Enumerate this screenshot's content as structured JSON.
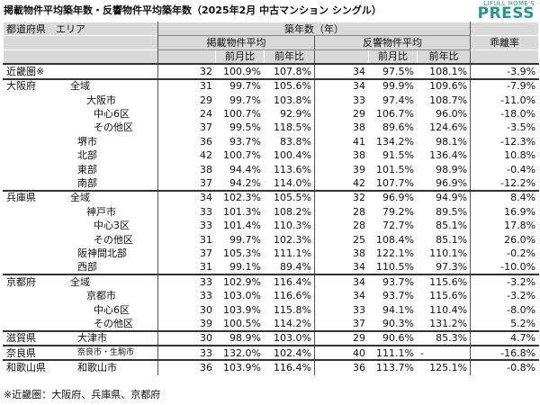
{
  "title": "掲載物件平均築年数・反響物件平均築年数（2025年2月 中古マンション シングル）",
  "logo": {
    "top": "LIFULL HOME'S",
    "main": "PRESS"
  },
  "headers": {
    "region": "都道府県　エリア",
    "age": "築年数（年）",
    "listed": "掲載物件平均",
    "inquiry": "反響物件平均",
    "gap": "乖離率",
    "mom": "前月比",
    "yoy": "前年比"
  },
  "rows": [
    {
      "pref": "近畿圏※",
      "area": "",
      "level": 0,
      "l": "32",
      "lm": "100.9%",
      "ly": "107.8%",
      "i": "34",
      "im": "97.5%",
      "iy": "108.1%",
      "g": "-3.9%"
    },
    {
      "pref": "大阪府",
      "area": "全域",
      "level": 0,
      "l": "31",
      "lm": "99.7%",
      "ly": "105.6%",
      "i": "34",
      "im": "99.9%",
      "iy": "109.6%",
      "g": "-7.9%"
    },
    {
      "pref": "",
      "area": "大阪市",
      "level": 2,
      "l": "29",
      "lm": "99.7%",
      "ly": "103.8%",
      "i": "33",
      "im": "97.4%",
      "iy": "108.7%",
      "g": "-11.0%"
    },
    {
      "pref": "",
      "area": "中心6区",
      "level": 3,
      "l": "24",
      "lm": "100.7%",
      "ly": "92.9%",
      "i": "29",
      "im": "106.7%",
      "iy": "96.0%",
      "g": "-18.0%"
    },
    {
      "pref": "",
      "area": "その他区",
      "level": 3,
      "l": "37",
      "lm": "99.5%",
      "ly": "118.5%",
      "i": "38",
      "im": "89.6%",
      "iy": "124.6%",
      "g": "-3.5%"
    },
    {
      "pref": "",
      "area": "堺市",
      "level": 1,
      "l": "36",
      "lm": "93.7%",
      "ly": "83.8%",
      "i": "41",
      "im": "134.2%",
      "iy": "98.1%",
      "g": "-12.3%"
    },
    {
      "pref": "",
      "area": "北部",
      "level": 1,
      "l": "42",
      "lm": "100.7%",
      "ly": "100.4%",
      "i": "38",
      "im": "91.5%",
      "iy": "136.4%",
      "g": "10.8%"
    },
    {
      "pref": "",
      "area": "東部",
      "level": 1,
      "l": "38",
      "lm": "94.4%",
      "ly": "113.6%",
      "i": "39",
      "im": "101.5%",
      "iy": "98.9%",
      "g": "-0.4%"
    },
    {
      "pref": "",
      "area": "南部",
      "level": 1,
      "l": "37",
      "lm": "94.2%",
      "ly": "114.0%",
      "i": "42",
      "im": "107.7%",
      "iy": "96.9%",
      "g": "-12.2%"
    },
    {
      "pref": "兵庫県",
      "area": "全域",
      "level": 0,
      "l": "34",
      "lm": "102.3%",
      "ly": "105.5%",
      "i": "32",
      "im": "96.9%",
      "iy": "94.9%",
      "g": "8.4%"
    },
    {
      "pref": "",
      "area": "神戸市",
      "level": 2,
      "l": "33",
      "lm": "101.3%",
      "ly": "108.2%",
      "i": "28",
      "im": "79.2%",
      "iy": "89.5%",
      "g": "16.9%"
    },
    {
      "pref": "",
      "area": "中心3区",
      "level": 3,
      "l": "33",
      "lm": "101.4%",
      "ly": "110.3%",
      "i": "28",
      "im": "72.7%",
      "iy": "85.1%",
      "g": "17.8%"
    },
    {
      "pref": "",
      "area": "その他区",
      "level": 3,
      "l": "31",
      "lm": "99.7%",
      "ly": "102.3%",
      "i": "25",
      "im": "108.4%",
      "iy": "85.1%",
      "g": "26.0%"
    },
    {
      "pref": "",
      "area": "阪神間北部",
      "level": 1,
      "l": "37",
      "lm": "105.3%",
      "ly": "111.1%",
      "i": "38",
      "im": "122.1%",
      "iy": "110.1%",
      "g": "-0.2%"
    },
    {
      "pref": "",
      "area": "西部",
      "level": 1,
      "l": "31",
      "lm": "99.1%",
      "ly": "89.4%",
      "i": "34",
      "im": "110.5%",
      "iy": "97.3%",
      "g": "-10.0%"
    },
    {
      "pref": "京都府",
      "area": "全域",
      "level": 0,
      "l": "33",
      "lm": "102.9%",
      "ly": "116.4%",
      "i": "34",
      "im": "93.7%",
      "iy": "115.6%",
      "g": "-3.2%"
    },
    {
      "pref": "",
      "area": "京都市",
      "level": 2,
      "l": "33",
      "lm": "103.0%",
      "ly": "116.6%",
      "i": "34",
      "im": "93.7%",
      "iy": "115.6%",
      "g": "-3.2%"
    },
    {
      "pref": "",
      "area": "中心6区",
      "level": 3,
      "l": "30",
      "lm": "103.9%",
      "ly": "115.8%",
      "i": "33",
      "im": "94.1%",
      "iy": "110.4%",
      "g": "-8.0%"
    },
    {
      "pref": "",
      "area": "その他区",
      "level": 3,
      "l": "39",
      "lm": "100.5%",
      "ly": "114.2%",
      "i": "37",
      "im": "90.3%",
      "iy": "131.2%",
      "g": "5.2%"
    },
    {
      "pref": "滋賀県",
      "area": "大津市",
      "level": 1,
      "l": "30",
      "lm": "98.9%",
      "ly": "103.0%",
      "i": "29",
      "im": "90.6%",
      "iy": "85.3%",
      "g": "4.7%"
    },
    {
      "pref": "奈良県",
      "area": "奈良市・生駒市",
      "level": 1,
      "small": true,
      "l": "33",
      "lm": "132.0%",
      "ly": "102.4%",
      "i": "40",
      "im": "111.1%",
      "iy": "-",
      "g": "-16.8%"
    },
    {
      "pref": "和歌山県",
      "area": "和歌山市",
      "level": 1,
      "l": "36",
      "lm": "103.9%",
      "ly": "116.4%",
      "i": "36",
      "im": "113.7%",
      "iy": "125.1%",
      "g": "-0.8%"
    }
  ],
  "note": "※近畿圏：大阪府、兵庫県、京都府"
}
